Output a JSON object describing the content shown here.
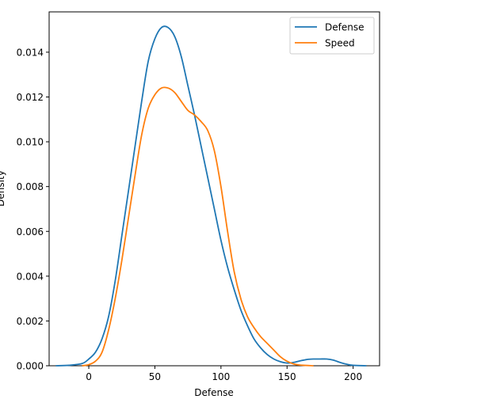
{
  "chart_data": {
    "type": "line",
    "title": "",
    "xlabel": "Defense",
    "ylabel": "Density",
    "xlim": [
      -30,
      220
    ],
    "ylim": [
      0,
      0.0158
    ],
    "xticks": [
      {
        "value": 0,
        "label": "0"
      },
      {
        "value": 50,
        "label": "50"
      },
      {
        "value": 100,
        "label": "100"
      },
      {
        "value": 150,
        "label": "150"
      },
      {
        "value": 200,
        "label": "200"
      }
    ],
    "yticks": [
      {
        "value": 0,
        "label": "0.000"
      },
      {
        "value": 0.002,
        "label": "0.002"
      },
      {
        "value": 0.004,
        "label": "0.004"
      },
      {
        "value": 0.006,
        "label": "0.006"
      },
      {
        "value": 0.008,
        "label": "0.008"
      },
      {
        "value": 0.01,
        "label": "0.010"
      },
      {
        "value": 0.012,
        "label": "0.012"
      },
      {
        "value": 0.014,
        "label": "0.014"
      }
    ],
    "grid": false,
    "legend_position": "top-right",
    "series": [
      {
        "name": "Defense",
        "color": "#1f77b4",
        "points": [
          [
            -25,
            0.0
          ],
          [
            -15,
            2e-05
          ],
          [
            -5,
            0.0001
          ],
          [
            0,
            0.0003
          ],
          [
            5,
            0.0006
          ],
          [
            10,
            0.0012
          ],
          [
            15,
            0.0022
          ],
          [
            20,
            0.0038
          ],
          [
            25,
            0.0058
          ],
          [
            30,
            0.0078
          ],
          [
            35,
            0.0098
          ],
          [
            40,
            0.0118
          ],
          [
            45,
            0.0136
          ],
          [
            50,
            0.0146
          ],
          [
            55,
            0.0151
          ],
          [
            60,
            0.0151
          ],
          [
            65,
            0.0147
          ],
          [
            70,
            0.0138
          ],
          [
            75,
            0.0125
          ],
          [
            80,
            0.0112
          ],
          [
            85,
            0.0098
          ],
          [
            90,
            0.0084
          ],
          [
            95,
            0.007
          ],
          [
            100,
            0.0056
          ],
          [
            105,
            0.0044
          ],
          [
            110,
            0.0034
          ],
          [
            115,
            0.0025
          ],
          [
            120,
            0.0018
          ],
          [
            125,
            0.0012
          ],
          [
            130,
            0.0008
          ],
          [
            135,
            0.0005
          ],
          [
            140,
            0.0003
          ],
          [
            145,
            0.00018
          ],
          [
            150,
            0.00012
          ],
          [
            155,
            0.00015
          ],
          [
            160,
            0.00022
          ],
          [
            165,
            0.00028
          ],
          [
            170,
            0.0003
          ],
          [
            175,
            0.0003
          ],
          [
            180,
            0.0003
          ],
          [
            185,
            0.00025
          ],
          [
            190,
            0.00015
          ],
          [
            195,
            7e-05
          ],
          [
            200,
            2e-05
          ],
          [
            210,
            0.0
          ]
        ]
      },
      {
        "name": "Speed",
        "color": "#ff7f0e",
        "points": [
          [
            -5,
            0.0
          ],
          [
            0,
            5e-05
          ],
          [
            5,
            0.0002
          ],
          [
            10,
            0.0006
          ],
          [
            15,
            0.0016
          ],
          [
            20,
            0.003
          ],
          [
            25,
            0.0047
          ],
          [
            30,
            0.0066
          ],
          [
            35,
            0.0085
          ],
          [
            40,
            0.0103
          ],
          [
            45,
            0.0115
          ],
          [
            50,
            0.0121
          ],
          [
            55,
            0.0124
          ],
          [
            60,
            0.0124
          ],
          [
            65,
            0.0122
          ],
          [
            70,
            0.0118
          ],
          [
            75,
            0.0114
          ],
          [
            80,
            0.0112
          ],
          [
            85,
            0.0109
          ],
          [
            90,
            0.0105
          ],
          [
            95,
            0.0096
          ],
          [
            100,
            0.008
          ],
          [
            105,
            0.006
          ],
          [
            110,
            0.0042
          ],
          [
            115,
            0.003
          ],
          [
            120,
            0.0022
          ],
          [
            125,
            0.0017
          ],
          [
            130,
            0.0013
          ],
          [
            135,
            0.001
          ],
          [
            140,
            0.0007
          ],
          [
            145,
            0.0004
          ],
          [
            150,
            0.0002
          ],
          [
            155,
            8e-05
          ],
          [
            160,
            3e-05
          ],
          [
            170,
            0.0
          ]
        ]
      }
    ]
  }
}
